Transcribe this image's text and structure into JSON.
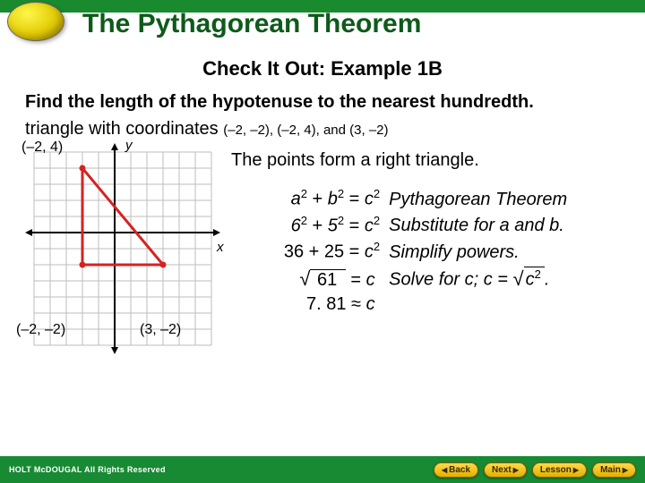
{
  "header": {
    "title": "The Pythagorean Theorem",
    "stripe_color": "#1a8a2e",
    "title_color": "#0e5a1a",
    "title_fontsize": 30
  },
  "subtitle": "Check It Out: Example 1B",
  "prompt": {
    "line1": "Find the length of the hypotenuse to the nearest hundredth.",
    "line2_prefix": "triangle with coordinates ",
    "coords": "(–2, –2), (–2, 4), and (3, –2)"
  },
  "graph": {
    "label_y": "y",
    "label_x": "x",
    "point_labels": {
      "A": "(–2, 4)",
      "B": "(–2, –2)",
      "C": "(3, –2)"
    },
    "grid": {
      "cell": 18,
      "cols": 11,
      "rows": 12,
      "axis_col": 5,
      "axis_row": 5,
      "grid_color": "#bdbdbd",
      "axis_color": "#000000"
    },
    "triangle": {
      "vertices_grid": [
        [
          3,
          1
        ],
        [
          3,
          7
        ],
        [
          8,
          7
        ]
      ],
      "fill": "none",
      "stroke": "#d62222",
      "stroke_width": 3,
      "vertex_fill": "#d62222",
      "vertex_radius": 3.5
    }
  },
  "statement": "The points form a right triangle.",
  "equations": {
    "rows": [
      {
        "lhs_a": "a",
        "lhs_b": "b",
        "rhs": "c",
        "sup": "2",
        "expl": "Pythagorean Theorem",
        "type": "sq"
      },
      {
        "lhs_a": "6",
        "lhs_b": "5",
        "rhs": "c",
        "sup": "2",
        "expl": "Substitute for a and b.",
        "type": "sq"
      },
      {
        "left": "36 + 25",
        "rhs": "c",
        "sup": "2",
        "expl": "Simplify powers.",
        "type": "sum"
      },
      {
        "radicand": "61",
        "rhs": "c",
        "expl_prefix": "Solve for c; c = ",
        "expl_rad": "c",
        "expl_sup": "2",
        "type": "root"
      },
      {
        "val": "7. 81",
        "rel": "≈",
        "rhs": "c",
        "type": "approx"
      }
    ]
  },
  "footer": {
    "copyright": "HOLT McDOUGAL  All Rights Reserved",
    "buttons": {
      "back": "Back",
      "next": "Next",
      "lesson": "Lesson",
      "main": "Main"
    },
    "bg_color": "#178a33",
    "btn_bg": "#ffd94a"
  }
}
